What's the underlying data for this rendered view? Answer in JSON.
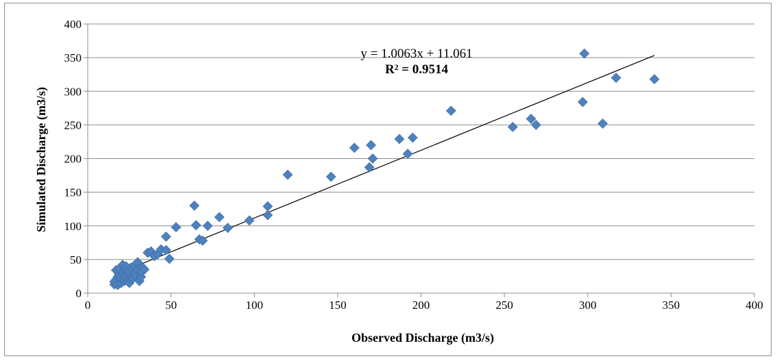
{
  "chart_data": {
    "type": "scatter",
    "title": "",
    "xlabel": "Observed Discharge (m3/s)",
    "ylabel": "Simulated Discharge (m3/s)",
    "xlim": [
      0,
      400
    ],
    "ylim": [
      0,
      400
    ],
    "x_ticks": [
      "0",
      "50",
      "100",
      "150",
      "200",
      "250",
      "300",
      "350",
      "400"
    ],
    "y_ticks": [
      "0",
      "50",
      "100",
      "150",
      "200",
      "250",
      "300",
      "350",
      "400"
    ],
    "grid": "horizontal",
    "legend": "none",
    "marker_color": "#4f81bd",
    "trendline": {
      "equation": "y = 1.0063x + 11.061",
      "r_squared": "R² = 0.9514",
      "slope": 1.0063,
      "intercept": 11.061,
      "x_range": [
        16,
        340
      ]
    },
    "points": [
      [
        16,
        13
      ],
      [
        16,
        17
      ],
      [
        17,
        20
      ],
      [
        17,
        34
      ],
      [
        18,
        12
      ],
      [
        18,
        24
      ],
      [
        19,
        28
      ],
      [
        19,
        37
      ],
      [
        20,
        15
      ],
      [
        20,
        22
      ],
      [
        21,
        42
      ],
      [
        21,
        30
      ],
      [
        22,
        18
      ],
      [
        22,
        26
      ],
      [
        23,
        35
      ],
      [
        23,
        40
      ],
      [
        24,
        20
      ],
      [
        24,
        28
      ],
      [
        25,
        15
      ],
      [
        25,
        32
      ],
      [
        26,
        24
      ],
      [
        26,
        38
      ],
      [
        27,
        22
      ],
      [
        28,
        30
      ],
      [
        28,
        41
      ],
      [
        29,
        26
      ],
      [
        30,
        46
      ],
      [
        30,
        35
      ],
      [
        31,
        18
      ],
      [
        32,
        24
      ],
      [
        32,
        31
      ],
      [
        33,
        38
      ],
      [
        34,
        35
      ],
      [
        36,
        60
      ],
      [
        38,
        62
      ],
      [
        40,
        55
      ],
      [
        42,
        58
      ],
      [
        44,
        65
      ],
      [
        47,
        64
      ],
      [
        47,
        84
      ],
      [
        49,
        51
      ],
      [
        53,
        98
      ],
      [
        64,
        130
      ],
      [
        65,
        101
      ],
      [
        67,
        80
      ],
      [
        69,
        78
      ],
      [
        72,
        100
      ],
      [
        79,
        113
      ],
      [
        84,
        97
      ],
      [
        97,
        108
      ],
      [
        108,
        129
      ],
      [
        108,
        116
      ],
      [
        120,
        176
      ],
      [
        146,
        173
      ],
      [
        160,
        216
      ],
      [
        169,
        187
      ],
      [
        170,
        220
      ],
      [
        171,
        200
      ],
      [
        187,
        229
      ],
      [
        192,
        207
      ],
      [
        195,
        231
      ],
      [
        218,
        271
      ],
      [
        255,
        247
      ],
      [
        266,
        259
      ],
      [
        269,
        250
      ],
      [
        297,
        284
      ],
      [
        298,
        356
      ],
      [
        309,
        252
      ],
      [
        317,
        320
      ],
      [
        340,
        318
      ]
    ]
  }
}
